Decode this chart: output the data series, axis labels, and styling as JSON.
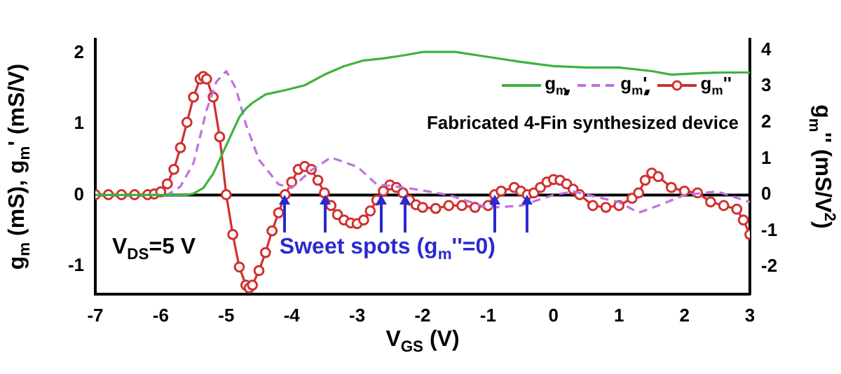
{
  "chart_data": {
    "type": "line",
    "xlabel": "V$_{GS}$ (V)",
    "ylabel": "g$_{m}$ (mS), g$_{m}$' (mS/V)",
    "y2label": "g$_{m}$'' (mS/V$^{2}$)",
    "xlim": [
      -7,
      3
    ],
    "xticks": [
      -7,
      -6,
      -5,
      -4,
      -3,
      -2,
      -1,
      0,
      1,
      2,
      3
    ],
    "ylim": [
      -1.4,
      2.2
    ],
    "yticks": [
      -1,
      0,
      1,
      2
    ],
    "y2lim": [
      -2.75,
      4.3
    ],
    "y2ticks": [
      -2,
      -1,
      0,
      1,
      2,
      3,
      4
    ],
    "grid": false,
    "legend": "top right",
    "ref_lines": [
      {
        "axis": "y",
        "value": 0,
        "color": "#000000"
      }
    ],
    "annotations": [
      "V$_{DS}$=5 V",
      "Fabricated 4-Fin synthesized device",
      "Sweet spots (g$_{m}$''=0)"
    ],
    "series": [
      {
        "name": "g$_{m}$",
        "color": "#3cb43c",
        "marker": "none",
        "line_style": "solid",
        "x": [
          -7,
          -6,
          -5.6,
          -5.5,
          -5.35,
          -5.2,
          -5.1,
          -5,
          -4.9,
          -4.8,
          -4.7,
          -4.6,
          -4.4,
          -4.1,
          -3.8,
          -3.5,
          -3.2,
          -2.9,
          -2.6,
          -2.3,
          -2,
          -1.5,
          -1,
          -0.5,
          0,
          0.5,
          1,
          1.5,
          1.8,
          2.2,
          2.6,
          3
        ],
        "values": [
          0,
          0,
          0,
          0.02,
          0.1,
          0.3,
          0.5,
          0.7,
          0.9,
          1.1,
          1.22,
          1.3,
          1.42,
          1.48,
          1.55,
          1.7,
          1.82,
          1.9,
          1.93,
          1.97,
          2.02,
          2.02,
          1.95,
          1.88,
          1.82,
          1.8,
          1.8,
          1.75,
          1.7,
          1.72,
          1.73,
          1.73
        ]
      },
      {
        "name": "g$_{m}$'",
        "color": "#c070e0",
        "marker": "none",
        "line_style": "dashed",
        "x": [
          -7,
          -5.9,
          -5.7,
          -5.5,
          -5.3,
          -5.15,
          -5,
          -4.85,
          -4.7,
          -4.5,
          -4.2,
          -4,
          -3.7,
          -3.4,
          -3,
          -2.7,
          -2.4,
          -2.1,
          -1.6,
          -1,
          -0.5,
          0,
          0.3,
          1,
          1.3,
          1.6,
          2,
          2.5,
          3
        ],
        "values": [
          0,
          0,
          0.12,
          0.45,
          1.2,
          1.6,
          1.75,
          1.5,
          1,
          0.5,
          0.15,
          0.1,
          0.35,
          0.53,
          0.4,
          0.15,
          0.12,
          0.08,
          0,
          -0.18,
          -0.15,
          0,
          0.05,
          -0.1,
          -0.25,
          -0.15,
          0,
          0.05,
          -0.1
        ]
      },
      {
        "name": "g$_{m}$''",
        "color": "#d03030",
        "marker": "circle",
        "line_style": "solid",
        "axis": "y2",
        "x": [
          -7,
          -6.8,
          -6.6,
          -6.4,
          -6.2,
          -6.1,
          -6,
          -5.9,
          -5.8,
          -5.7,
          -5.6,
          -5.5,
          -5.4,
          -5.35,
          -5.3,
          -5.2,
          -5.1,
          -5,
          -4.9,
          -4.8,
          -4.7,
          -4.65,
          -4.6,
          -4.5,
          -4.4,
          -4.3,
          -4.2,
          -4.1,
          -4,
          -3.9,
          -3.8,
          -3.7,
          -3.6,
          -3.5,
          -3.4,
          -3.3,
          -3.2,
          -3.1,
          -3,
          -2.9,
          -2.8,
          -2.7,
          -2.6,
          -2.5,
          -2.4,
          -2.3,
          -2.2,
          -2.1,
          -2,
          -1.8,
          -1.6,
          -1.4,
          -1.2,
          -1,
          -0.9,
          -0.8,
          -0.6,
          -0.5,
          -0.4,
          -0.3,
          -0.2,
          -0.1,
          0,
          0.1,
          0.2,
          0.3,
          0.4,
          0.6,
          0.8,
          1,
          1.2,
          1.3,
          1.4,
          1.5,
          1.6,
          1.8,
          2,
          2.2,
          2.4,
          2.6,
          2.8,
          2.9,
          3
        ],
        "values": [
          0,
          0,
          0,
          0,
          0,
          0.02,
          0.08,
          0.3,
          0.7,
          1.3,
          2,
          2.7,
          3.2,
          3.27,
          3.2,
          2.7,
          1.6,
          0,
          -1.1,
          -2,
          -2.5,
          -2.58,
          -2.5,
          -2.1,
          -1.6,
          -1,
          -0.5,
          0,
          0.35,
          0.7,
          0.78,
          0.7,
          0.4,
          0.05,
          -0.3,
          -0.55,
          -0.7,
          -0.78,
          -0.8,
          -0.7,
          -0.45,
          -0.15,
          0.1,
          0.27,
          0.2,
          0.05,
          -0.15,
          -0.28,
          -0.35,
          -0.38,
          -0.3,
          -0.3,
          -0.35,
          -0.3,
          0,
          0.1,
          0.2,
          0.1,
          0,
          0.05,
          0.2,
          0.35,
          0.42,
          0.4,
          0.3,
          0.15,
          0,
          -0.3,
          -0.35,
          -0.3,
          -0.1,
          0.05,
          0.4,
          0.6,
          0.5,
          0.2,
          0.1,
          0.05,
          -0.2,
          -0.3,
          -0.4,
          -0.7,
          -1.1
        ]
      }
    ]
  }
}
